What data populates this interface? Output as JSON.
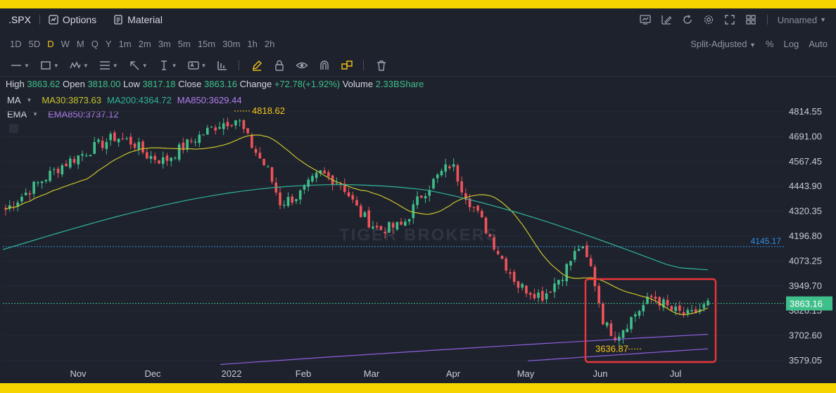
{
  "toolbar": {
    "symbol": ".SPX",
    "options_label": "Options",
    "material_label": "Material",
    "layout_name": "Unnamed"
  },
  "timeframes": [
    "1D",
    "5D",
    "D",
    "W",
    "M",
    "Q",
    "Y",
    "1m",
    "2m",
    "3m",
    "5m",
    "15m",
    "30m",
    "1h",
    "2h"
  ],
  "active_timeframe": "D",
  "chart_settings": {
    "adjust": "Split-Adjusted",
    "percent": "%",
    "log": "Log",
    "auto": "Auto"
  },
  "quote": {
    "high_label": "High",
    "high": "3863.62",
    "open_label": "Open",
    "open": "3818.00",
    "low_label": "Low",
    "low": "3817.18",
    "close_label": "Close",
    "close": "3863.16",
    "change_label": "Change",
    "change": "+72.78(+1.92%)",
    "volume_label": "Volume",
    "volume": "2.33BShare"
  },
  "indicators": {
    "ma_name": "MA",
    "ma30": "MA30:3873.63",
    "ma200": "MA200:4364.72",
    "ma850": "MA850:3629.44",
    "ema_name": "EMA",
    "ema850": "EMA850:3737.12"
  },
  "colors": {
    "up": "#3fbf8a",
    "down": "#f0535a",
    "ma30": "#c9c42b",
    "ma200": "#2fb49a",
    "ma850": "#8f5fe0",
    "highlight_box": "#e8363a",
    "ref_line": "#2f8fe0",
    "active_tf": "#f5c518"
  },
  "chart_data": {
    "type": "candlestick",
    "y_ticks": [
      "4814.55",
      "4691.00",
      "4567.45",
      "4443.90",
      "4320.35",
      "4196.80",
      "4073.25",
      "3949.70",
      "3826.15",
      "3702.60",
      "3579.05"
    ],
    "ylim": [
      3579.05,
      4814.55
    ],
    "x_labels": [
      "Nov",
      "Dec",
      "2022",
      "Feb",
      "Mar",
      "Apr",
      "May",
      "Jun",
      "Jul"
    ],
    "annotations": {
      "high_marker": "4818.62",
      "low_marker": "3636.87",
      "ref_line_value": "4145.17",
      "last_price": "3863.16"
    },
    "watermark": "TIGER BROKERS"
  }
}
